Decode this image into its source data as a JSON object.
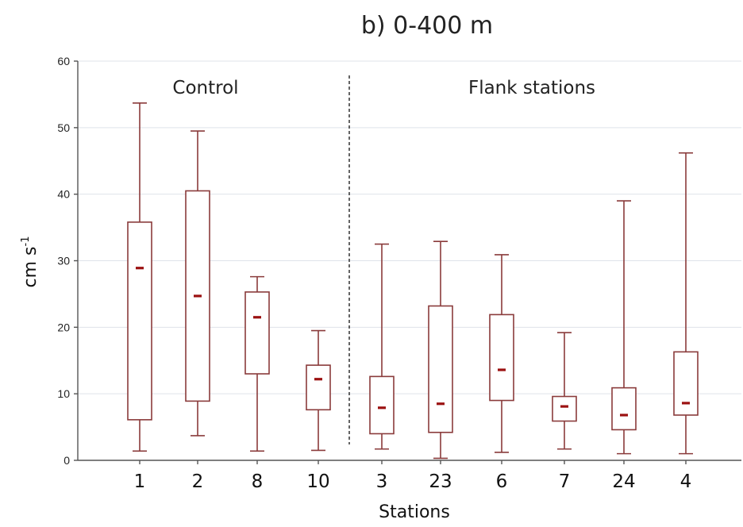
{
  "chart_data": {
    "type": "box",
    "title": "b)  0-400 m",
    "xlabel": "Stations",
    "ylabel": "cm s",
    "ylabel_superscript": "-1",
    "ylim": [
      0,
      60
    ],
    "yticks": [
      0,
      10,
      20,
      30,
      40,
      50,
      60
    ],
    "grid": true,
    "groups": [
      {
        "label": "Control",
        "categories": [
          "1",
          "2",
          "8",
          "10"
        ]
      },
      {
        "label": "Flank stations",
        "categories": [
          "3",
          "23",
          "6",
          "7",
          "24",
          "4"
        ]
      }
    ],
    "categories": [
      "1",
      "2",
      "8",
      "10",
      "3",
      "23",
      "6",
      "7",
      "24",
      "4"
    ],
    "boxes": [
      {
        "category": "1",
        "min": 1.4,
        "q1": 6.1,
        "median": 28.9,
        "q3": 35.8,
        "max": 53.7
      },
      {
        "category": "2",
        "min": 3.7,
        "q1": 8.9,
        "median": 24.7,
        "q3": 40.5,
        "max": 49.5
      },
      {
        "category": "8",
        "min": 1.4,
        "q1": 13.0,
        "median": 21.5,
        "q3": 25.3,
        "max": 27.6
      },
      {
        "category": "10",
        "min": 1.5,
        "q1": 7.6,
        "median": 12.2,
        "q3": 14.3,
        "max": 19.5
      },
      {
        "category": "3",
        "min": 1.7,
        "q1": 4.0,
        "median": 7.9,
        "q3": 12.6,
        "max": 32.5
      },
      {
        "category": "23",
        "min": 0.3,
        "q1": 4.2,
        "median": 8.5,
        "q3": 23.2,
        "max": 32.9
      },
      {
        "category": "6",
        "min": 1.2,
        "q1": 9.0,
        "median": 13.6,
        "q3": 21.9,
        "max": 30.9
      },
      {
        "category": "7",
        "min": 1.7,
        "q1": 5.9,
        "median": 8.1,
        "q3": 9.6,
        "max": 19.2
      },
      {
        "category": "24",
        "min": 1.0,
        "q1": 4.6,
        "median": 6.8,
        "q3": 10.9,
        "max": 39.0
      },
      {
        "category": "4",
        "min": 1.0,
        "q1": 6.8,
        "median": 8.6,
        "q3": 16.3,
        "max": 46.2
      }
    ],
    "colors": {
      "box": "#8a3b3b",
      "median": "#9b1111",
      "grid": "#dfe3ea"
    }
  }
}
